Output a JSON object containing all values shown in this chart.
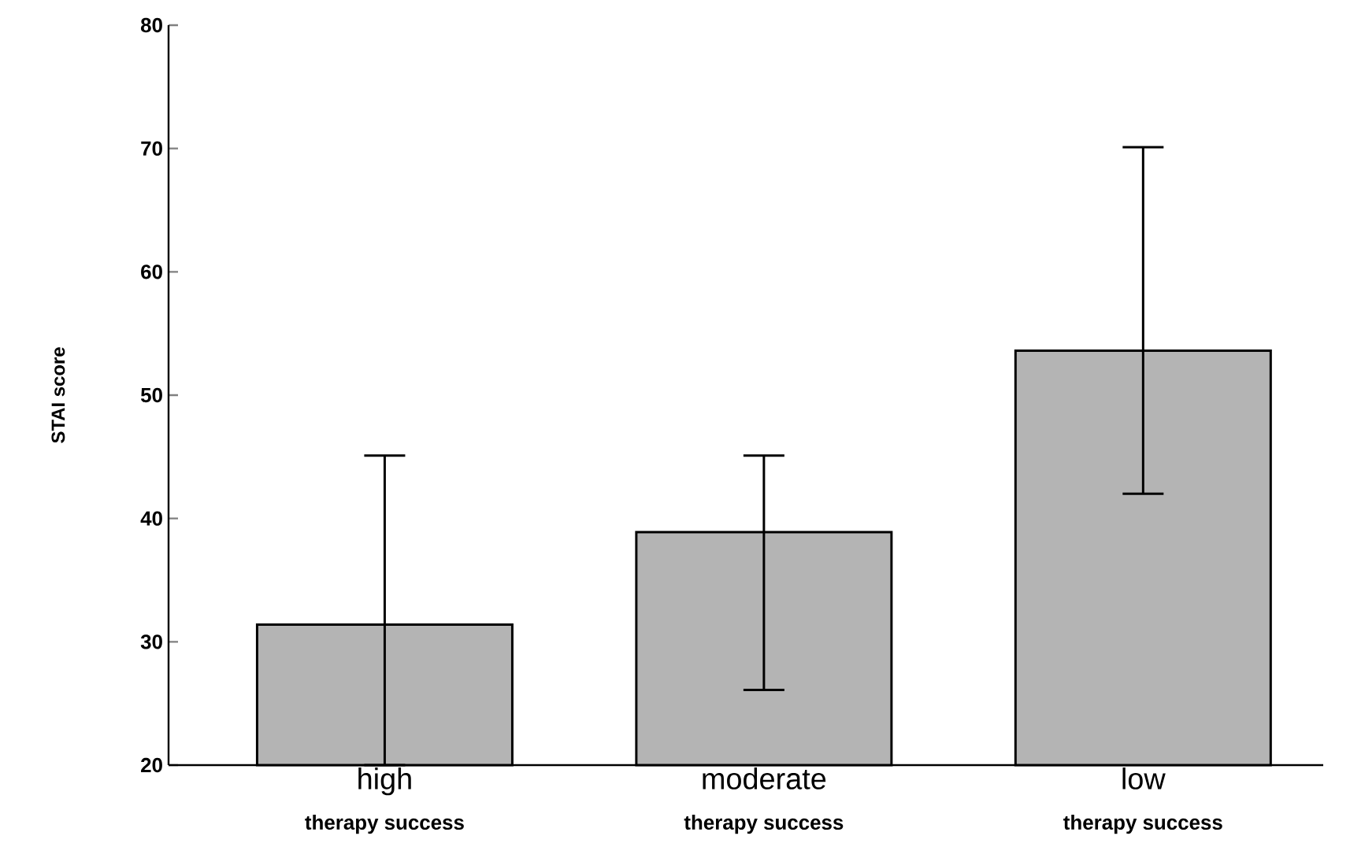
{
  "chart_data": {
    "type": "bar",
    "ylabel": "STAI score",
    "categories": [
      "high",
      "moderate",
      "low"
    ],
    "values": [
      31.4,
      38.9,
      53.6
    ],
    "errors": [
      [
        20,
        45.1
      ],
      [
        26.1,
        45.1
      ],
      [
        42.0,
        70.1
      ]
    ],
    "color": "#b4b4b4",
    "ylim": [
      20,
      80
    ],
    "yticks": [
      20,
      30,
      40,
      50,
      60,
      70,
      80
    ],
    "annotations": [
      "therapy success",
      "therapy success",
      "therapy success"
    ]
  }
}
